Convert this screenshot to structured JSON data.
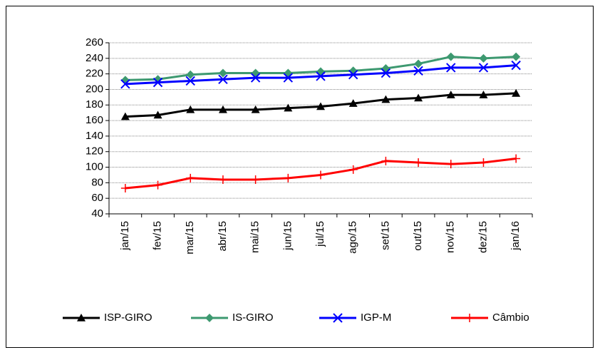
{
  "chart_data": {
    "type": "line",
    "categories": [
      "jan/15",
      "fev/15",
      "mar/15",
      "abr/15",
      "mai/15",
      "jun/15",
      "jul/15",
      "ago/15",
      "set/15",
      "out/15",
      "nov/15",
      "dez/15",
      "jan/16"
    ],
    "series": [
      {
        "name": "ISP-GIRO",
        "color": "#000000",
        "marker": "triangle",
        "values": [
          165,
          167,
          174,
          174,
          174,
          176,
          178,
          182,
          187,
          189,
          193,
          193,
          195
        ]
      },
      {
        "name": "IS-GIRO",
        "color": "#3d9970",
        "marker": "diamond",
        "values": [
          212,
          213,
          219,
          221,
          221,
          221,
          223,
          224,
          227,
          233,
          242,
          240,
          242
        ]
      },
      {
        "name": "IGP-M",
        "color": "#0000ff",
        "marker": "x",
        "values": [
          207,
          209,
          211,
          213,
          215,
          215,
          217,
          219,
          221,
          224,
          228,
          228,
          231
        ]
      },
      {
        "name": "Câmbio",
        "color": "#ff0000",
        "marker": "plus",
        "values": [
          73,
          77,
          86,
          84,
          84,
          86,
          90,
          97,
          108,
          106,
          104,
          106,
          111
        ]
      }
    ],
    "ylim": [
      40,
      260
    ],
    "yticks": [
      40,
      60,
      80,
      100,
      120,
      140,
      160,
      180,
      200,
      220,
      240,
      260
    ],
    "grid": true,
    "legend": "bottom"
  }
}
